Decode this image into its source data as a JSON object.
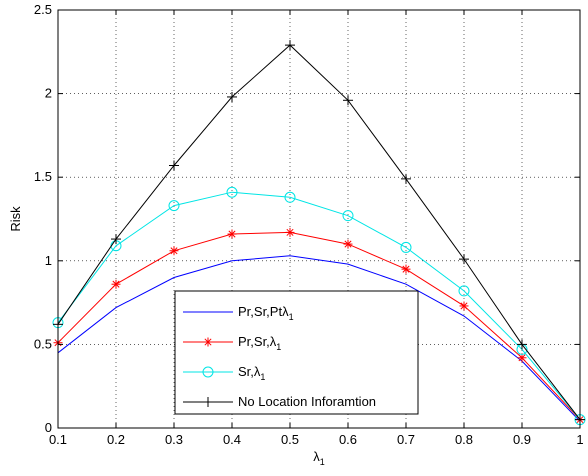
{
  "chart_data": {
    "type": "line",
    "xlabel": "λ",
    "xlabel_sub": "1",
    "ylabel": "Risk",
    "xlim": [
      0.1,
      1
    ],
    "ylim": [
      0,
      2.5
    ],
    "grid": true,
    "legend_position": "bottom-center",
    "x_ticks": [
      "0.1",
      "0.2",
      "0.3",
      "0.4",
      "0.5",
      "0.6",
      "0.7",
      "0.8",
      "0.9",
      "1"
    ],
    "y_ticks": [
      "0",
      "0.5",
      "1",
      "1.5",
      "2",
      "2.5"
    ],
    "x": [
      0.1,
      0.2,
      0.3,
      0.4,
      0.5,
      0.6,
      0.7,
      0.8,
      0.9,
      1.0
    ],
    "series": [
      {
        "name": "Pr,Sr,Ptλ",
        "name_sub": "1",
        "color": "#0000ff",
        "marker": "none",
        "values": [
          0.45,
          0.72,
          0.9,
          1.0,
          1.03,
          0.98,
          0.86,
          0.67,
          0.4,
          0.04
        ]
      },
      {
        "name": "Pr,Sr,λ",
        "name_sub": "1",
        "color": "#ff0000",
        "marker": "star",
        "values": [
          0.51,
          0.86,
          1.06,
          1.16,
          1.17,
          1.1,
          0.95,
          0.73,
          0.42,
          0.05
        ]
      },
      {
        "name": "Sr,λ",
        "name_sub": "1",
        "color": "#00e5e5",
        "marker": "circle",
        "values": [
          0.63,
          1.09,
          1.33,
          1.41,
          1.38,
          1.27,
          1.08,
          0.82,
          0.47,
          0.05
        ]
      },
      {
        "name": "No Location Inforamtion",
        "name_sub": "",
        "color": "#000000",
        "marker": "plus",
        "values": [
          0.62,
          1.13,
          1.57,
          1.98,
          2.29,
          1.96,
          1.49,
          1.01,
          0.5,
          0.05
        ]
      }
    ]
  }
}
